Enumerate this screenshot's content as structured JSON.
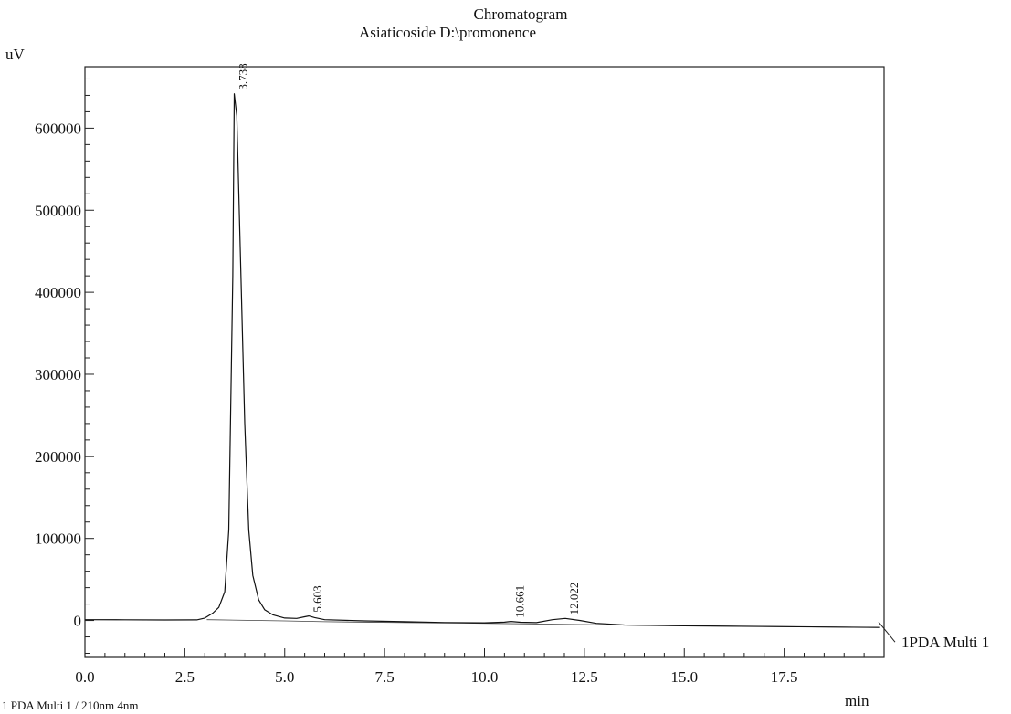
{
  "chart_data": {
    "type": "line",
    "title": "Chromatogram",
    "subtitle": "Asiaticoside D:\\promonence",
    "ylabel": "uV",
    "xlabel": "min",
    "xlim": [
      0,
      20
    ],
    "ylim": [
      -45000,
      675000
    ],
    "x_ticks": [
      0.0,
      2.5,
      5.0,
      7.5,
      10.0,
      12.5,
      15.0,
      17.5
    ],
    "x_tick_labels": [
      "0.0",
      "2.5",
      "5.0",
      "7.5",
      "10.0",
      "12.5",
      "15.0",
      "17.5"
    ],
    "y_ticks": [
      0,
      100000,
      200000,
      300000,
      400000,
      500000,
      600000
    ],
    "y_tick_labels": [
      "0",
      "100000",
      "200000",
      "300000",
      "400000",
      "500000",
      "600000"
    ],
    "series": [
      {
        "name": "1PDA Multi 1",
        "x": [
          0,
          1,
          2,
          2.8,
          3.0,
          3.2,
          3.35,
          3.5,
          3.6,
          3.7,
          3.738,
          3.8,
          3.9,
          4.0,
          4.1,
          4.2,
          4.35,
          4.5,
          4.7,
          5.0,
          5.3,
          5.5,
          5.603,
          5.75,
          6.0,
          7.0,
          8.0,
          9.0,
          10.0,
          10.5,
          10.661,
          10.9,
          11.3,
          11.7,
          12.022,
          12.4,
          12.8,
          13.5,
          15.0,
          17.5,
          19.9
        ],
        "y": [
          1000,
          800,
          600,
          700,
          3000,
          9000,
          16000,
          35000,
          110000,
          420000,
          642000,
          615000,
          430000,
          240000,
          110000,
          55000,
          25000,
          13000,
          7000,
          3000,
          2500,
          4500,
          5500,
          3500,
          1000,
          -500,
          -1500,
          -2500,
          -2800,
          -2000,
          -1200,
          -2200,
          -2600,
          1000,
          2500,
          0,
          -3500,
          -5500,
          -6500,
          -7500,
          -8500
        ]
      }
    ],
    "baseline": {
      "x": [
        3.05,
        5.0,
        6.0,
        10.0,
        12.5,
        15.0,
        19.9
      ],
      "y": [
        1000,
        -500,
        -1500,
        -3500,
        -5000,
        -6500,
        -8500
      ]
    },
    "peak_labels": [
      {
        "x": 3.738,
        "y": 642000,
        "label": "3.738"
      },
      {
        "x": 5.603,
        "y": 5500,
        "label": "5.603"
      },
      {
        "x": 10.661,
        "y": -1200,
        "label": "10.661"
      },
      {
        "x": 12.022,
        "y": 2500,
        "label": "12.022"
      }
    ],
    "trace_label": "1PDA Multi 1",
    "footer": "1 PDA Multi 1 / 210nm 4nm"
  }
}
